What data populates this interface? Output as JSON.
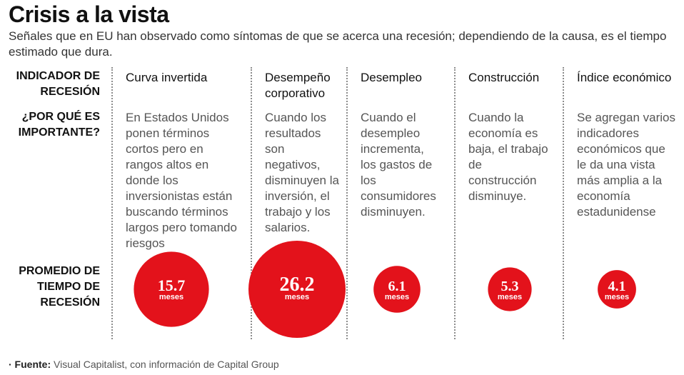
{
  "title": "Crisis a la vista",
  "subtitle": "Señales que en EU han observado como síntomas de que se acerca una recesión; dependiendo de la causa, es el tiempo estimado que dura.",
  "row_labels": {
    "indicator": "INDICADOR DE RECESIÓN",
    "why": "¿POR QUÉ ES IMPORTANTE?",
    "average": "PROMEDIO DE TIEMPO DE RECESIÓN"
  },
  "columns": [
    {
      "name": "Curva invertida",
      "description": "En Estados Unidos ponen términos cortos pero en rangos altos en donde los inversionistas están buscando términos largos pero tomando riesgos"
    },
    {
      "name": "Desempeño corporativo",
      "description": "Cuando los resultados son negativos, disminuyen la inversión, el trabajo y los salarios."
    },
    {
      "name": "Desempleo",
      "description": "Cuando el desempleo incrementa, los gastos de los consumidores disminuyen."
    },
    {
      "name": "Construcción",
      "description": "Cuando la economía es baja, el trabajo de construcción disminuye."
    },
    {
      "name": "Índice económico",
      "description": "Se agregan varios indicadores económicos que le da una vista más amplia a la economía estadunidense"
    }
  ],
  "chart_data": {
    "type": "bubble",
    "categories": [
      "Curva invertida",
      "Desempeño corporativo",
      "Desempleo",
      "Construcción",
      "Índice económico"
    ],
    "values": [
      15.7,
      26.2,
      6.1,
      5.3,
      4.1
    ],
    "value_labels": [
      "15.7",
      "26.2",
      "6.1",
      "5.3",
      "4.1"
    ],
    "unit": "meses",
    "color": "#e3121b"
  },
  "source": {
    "label": "· Fuente:",
    "text": "Visual Capitalist, con información de Capital Group"
  }
}
